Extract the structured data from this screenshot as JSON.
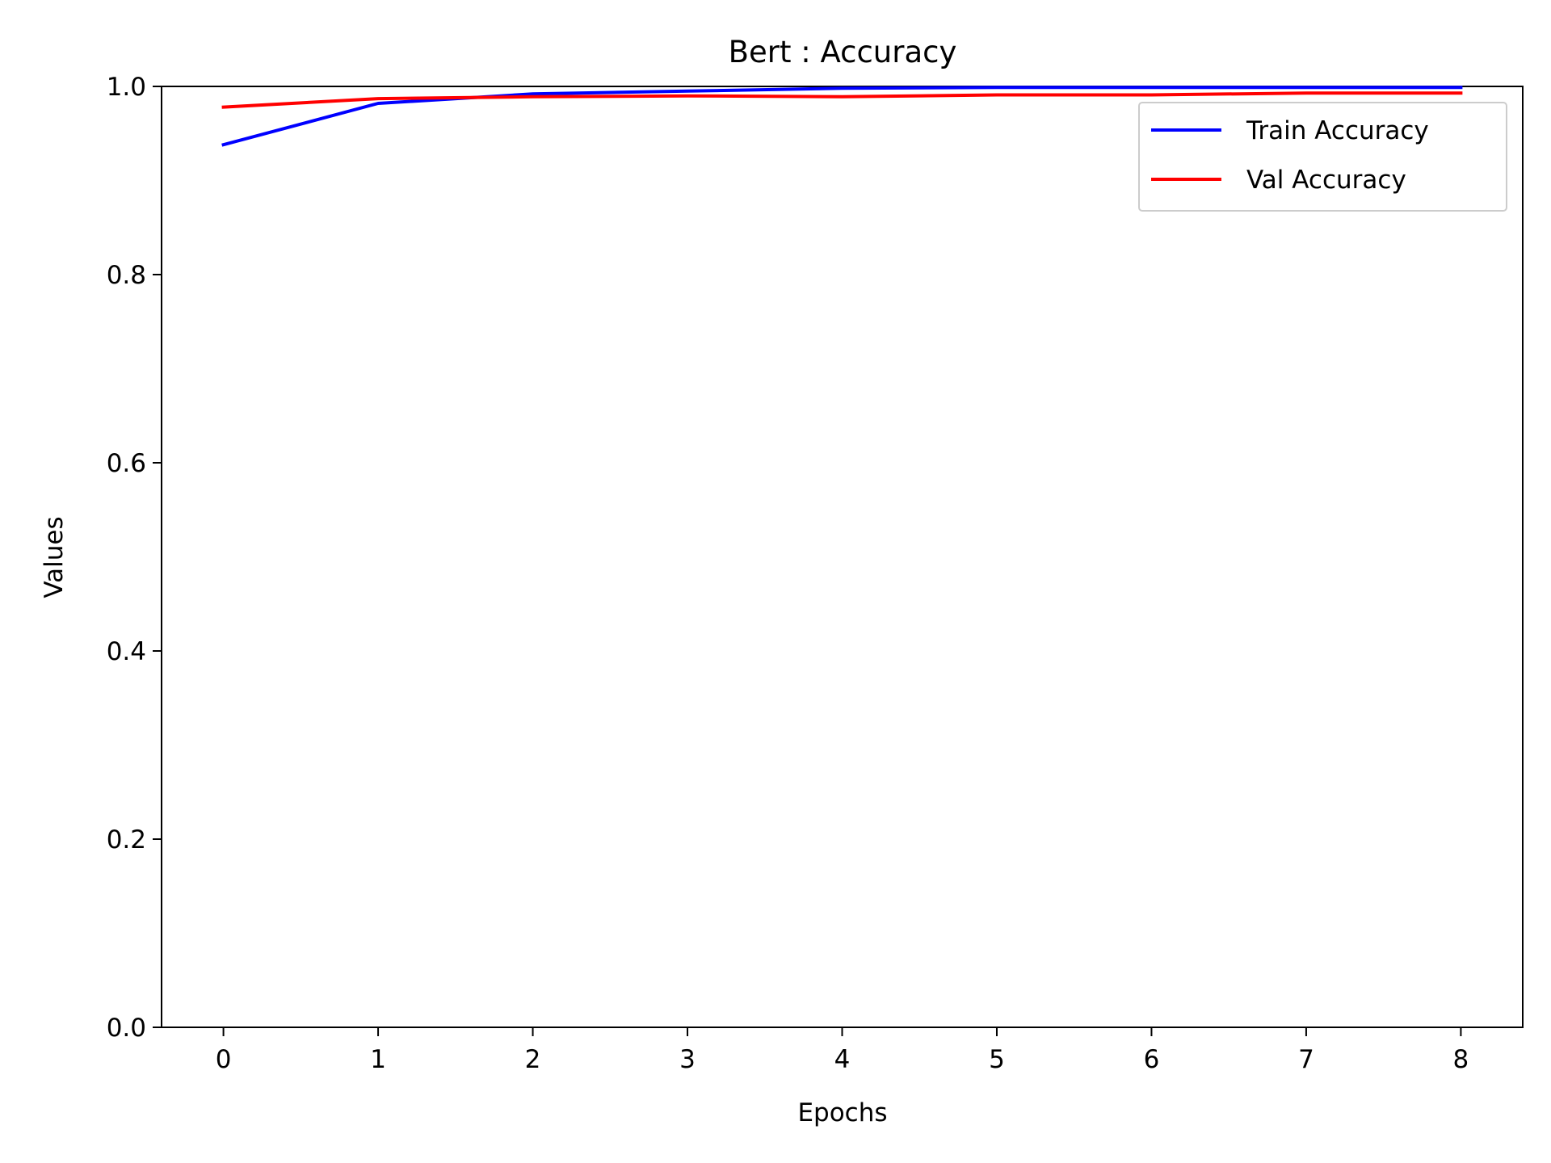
{
  "chart_data": {
    "type": "line",
    "title": "Bert : Accuracy",
    "xlabel": "Epochs",
    "ylabel": "Values",
    "x": [
      0,
      1,
      2,
      3,
      4,
      5,
      6,
      7,
      8
    ],
    "xlim": [
      -0.4,
      8.4
    ],
    "ylim": [
      0,
      1.0
    ],
    "xticks": [
      "0",
      "1",
      "2",
      "3",
      "4",
      "5",
      "6",
      "7",
      "8"
    ],
    "yticks": [
      "0.0",
      "0.2",
      "0.4",
      "0.6",
      "0.8",
      "1.0"
    ],
    "ytick_values": [
      0,
      0.2,
      0.4,
      0.6,
      0.8,
      1.0
    ],
    "grid": false,
    "legend_position": "top-right",
    "series": [
      {
        "name": "Train Accuracy",
        "color": "#0000ff",
        "values": [
          0.938,
          0.982,
          0.992,
          0.995,
          0.998,
          0.999,
          0.999,
          0.999,
          0.999
        ]
      },
      {
        "name": "Val Accuracy",
        "color": "#ff0000",
        "values": [
          0.978,
          0.987,
          0.989,
          0.99,
          0.989,
          0.991,
          0.991,
          0.993,
          0.993
        ]
      }
    ]
  }
}
